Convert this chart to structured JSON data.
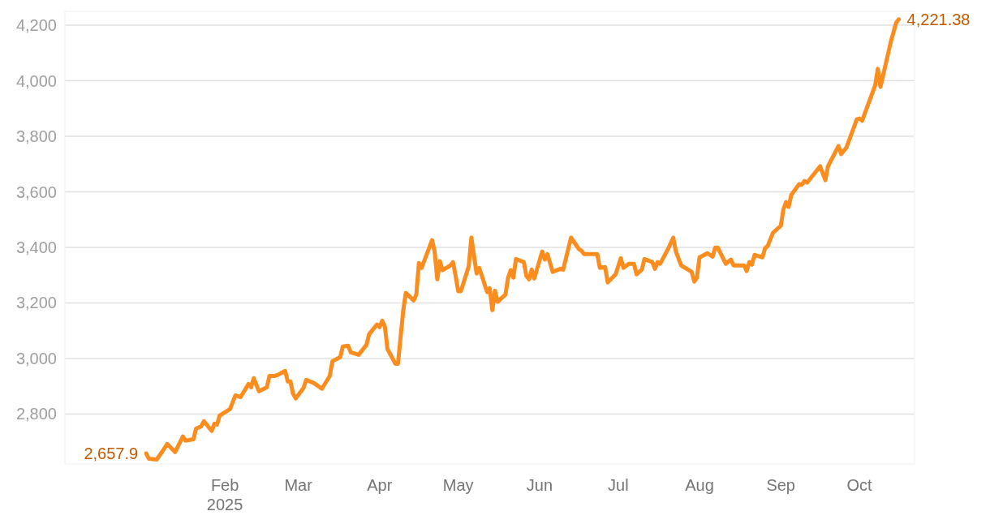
{
  "chart_data": {
    "type": "line",
    "x": [
      "2025-01-02",
      "2025-01-03",
      "2025-01-06",
      "2025-01-08",
      "2025-01-10",
      "2025-01-13",
      "2025-01-16",
      "2025-01-17",
      "2025-01-20",
      "2025-01-21",
      "2025-01-23",
      "2025-01-24",
      "2025-01-27",
      "2025-01-28",
      "2025-01-29",
      "2025-01-30",
      "2025-02-03",
      "2025-02-05",
      "2025-02-07",
      "2025-02-10",
      "2025-02-11",
      "2025-02-12",
      "2025-02-14",
      "2025-02-17",
      "2025-02-18",
      "2025-02-20",
      "2025-02-21",
      "2025-02-24",
      "2025-02-25",
      "2025-02-26",
      "2025-02-27",
      "2025-02-28",
      "2025-03-03",
      "2025-03-04",
      "2025-03-07",
      "2025-03-10",
      "2025-03-13",
      "2025-03-14",
      "2025-03-17",
      "2025-03-18",
      "2025-03-20",
      "2025-03-21",
      "2025-03-24",
      "2025-03-25",
      "2025-03-27",
      "2025-03-28",
      "2025-03-31",
      "2025-04-01",
      "2025-04-02",
      "2025-04-03",
      "2025-04-04",
      "2025-04-07",
      "2025-04-08",
      "2025-04-10",
      "2025-04-11",
      "2025-04-14",
      "2025-04-15",
      "2025-04-16",
      "2025-04-17",
      "2025-04-21",
      "2025-04-22",
      "2025-04-23",
      "2025-04-24",
      "2025-04-25",
      "2025-04-28",
      "2025-04-29",
      "2025-04-30",
      "2025-05-01",
      "2025-05-02",
      "2025-05-05",
      "2025-05-06",
      "2025-05-08",
      "2025-05-09",
      "2025-05-12",
      "2025-05-13",
      "2025-05-14",
      "2025-05-15",
      "2025-05-16",
      "2025-05-19",
      "2025-05-20",
      "2025-05-21",
      "2025-05-22",
      "2025-05-23",
      "2025-05-26",
      "2025-05-27",
      "2025-05-28",
      "2025-05-29",
      "2025-05-30",
      "2025-06-02",
      "2025-06-03",
      "2025-06-04",
      "2025-06-06",
      "2025-06-09",
      "2025-06-10",
      "2025-06-13",
      "2025-06-16",
      "2025-06-17",
      "2025-06-18",
      "2025-06-23",
      "2025-06-24",
      "2025-06-26",
      "2025-06-27",
      "2025-06-30",
      "2025-07-02",
      "2025-07-03",
      "2025-07-05",
      "2025-07-07",
      "2025-07-08",
      "2025-07-10",
      "2025-07-11",
      "2025-07-14",
      "2025-07-15",
      "2025-07-16",
      "2025-07-17",
      "2025-07-20",
      "2025-07-22",
      "2025-07-23",
      "2025-07-25",
      "2025-07-28",
      "2025-07-29",
      "2025-07-30",
      "2025-07-31",
      "2025-08-01",
      "2025-08-04",
      "2025-08-06",
      "2025-08-07",
      "2025-08-08",
      "2025-08-11",
      "2025-08-13",
      "2025-08-14",
      "2025-08-18",
      "2025-08-19",
      "2025-08-20",
      "2025-08-21",
      "2025-08-22",
      "2025-08-25",
      "2025-08-26",
      "2025-08-27",
      "2025-08-29",
      "2025-09-01",
      "2025-09-02",
      "2025-09-03",
      "2025-09-04",
      "2025-09-05",
      "2025-09-08",
      "2025-09-09",
      "2025-09-10",
      "2025-09-11",
      "2025-09-16",
      "2025-09-18",
      "2025-09-19",
      "2025-09-23",
      "2025-09-24",
      "2025-09-26",
      "2025-09-30",
      "2025-10-01",
      "2025-10-02",
      "2025-10-07",
      "2025-10-08",
      "2025-10-09",
      "2025-10-13",
      "2025-10-15",
      "2025-10-16"
    ],
    "series": [
      {
        "color": "#fb8c1e",
        "values": [
          2657.9,
          2639,
          2636,
          2663,
          2692,
          2663,
          2719,
          2704,
          2709,
          2747,
          2756,
          2774,
          2739,
          2765,
          2762,
          2794,
          2818,
          2867,
          2861,
          2908,
          2896,
          2929,
          2882,
          2896,
          2937,
          2937,
          2940,
          2955,
          2917,
          2917,
          2873,
          2856,
          2894,
          2923,
          2911,
          2891,
          2937,
          2990,
          3005,
          3043,
          3046,
          3022,
          3013,
          3025,
          3049,
          3087,
          3122,
          3113,
          3136,
          3116,
          3034,
          2981,
          2981,
          3171,
          3236,
          3209,
          3230,
          3344,
          3326,
          3426,
          3385,
          3285,
          3350,
          3318,
          3335,
          3347,
          3297,
          3242,
          3242,
          3332,
          3435,
          3306,
          3326,
          3239,
          3253,
          3174,
          3244,
          3204,
          3230,
          3291,
          3318,
          3291,
          3358,
          3347,
          3297,
          3285,
          3320,
          3288,
          3385,
          3356,
          3376,
          3312,
          3323,
          3320,
          3435,
          3394,
          3388,
          3376,
          3376,
          3326,
          3329,
          3274,
          3303,
          3361,
          3326,
          3341,
          3341,
          3303,
          3320,
          3358,
          3347,
          3323,
          3347,
          3341,
          3394,
          3435,
          3385,
          3335,
          3318,
          3312,
          3277,
          3291,
          3364,
          3379,
          3367,
          3399,
          3399,
          3341,
          3356,
          3335,
          3335,
          3315,
          3347,
          3338,
          3373,
          3364,
          3397,
          3405,
          3452,
          3478,
          3537,
          3563,
          3546,
          3589,
          3628,
          3625,
          3639,
          3633,
          3692,
          3642,
          3692,
          3765,
          3736,
          3759,
          3861,
          3864,
          3856,
          3984,
          4043,
          3978,
          4142,
          4209,
          4221.38
        ]
      }
    ],
    "xlim": [
      "2024-12-02",
      "2025-10-22"
    ],
    "xticks": [
      {
        "value": "2025-02-01",
        "label": "Feb\n2025"
      },
      {
        "value": "2025-03-01",
        "label": "Mar"
      },
      {
        "value": "2025-04-01",
        "label": "Apr"
      },
      {
        "value": "2025-05-01",
        "label": "May"
      },
      {
        "value": "2025-06-01",
        "label": "Jun"
      },
      {
        "value": "2025-07-01",
        "label": "Jul"
      },
      {
        "value": "2025-08-01",
        "label": "Aug"
      },
      {
        "value": "2025-09-01",
        "label": "Sep"
      },
      {
        "value": "2025-10-01",
        "label": "Oct"
      }
    ],
    "ylim": [
      2620,
      4250
    ],
    "yticks": [
      {
        "value": 2800,
        "label": "2,800"
      },
      {
        "value": 3000,
        "label": "3,000"
      },
      {
        "value": 3200,
        "label": "3,200"
      },
      {
        "value": 3400,
        "label": "3,400"
      },
      {
        "value": 3600,
        "label": "3,600"
      },
      {
        "value": 3800,
        "label": "3,800"
      },
      {
        "value": 4000,
        "label": "4,000"
      },
      {
        "value": 4200,
        "label": "4,200"
      }
    ],
    "grid": "y",
    "marker": "none",
    "line_style": "solid",
    "annotations": [
      {
        "text": "2,657.9",
        "x": "2025-01-02",
        "y": 2657.9
      },
      {
        "text": "4,221.38",
        "x": "2025-10-16",
        "y": 4221.38
      }
    ]
  }
}
